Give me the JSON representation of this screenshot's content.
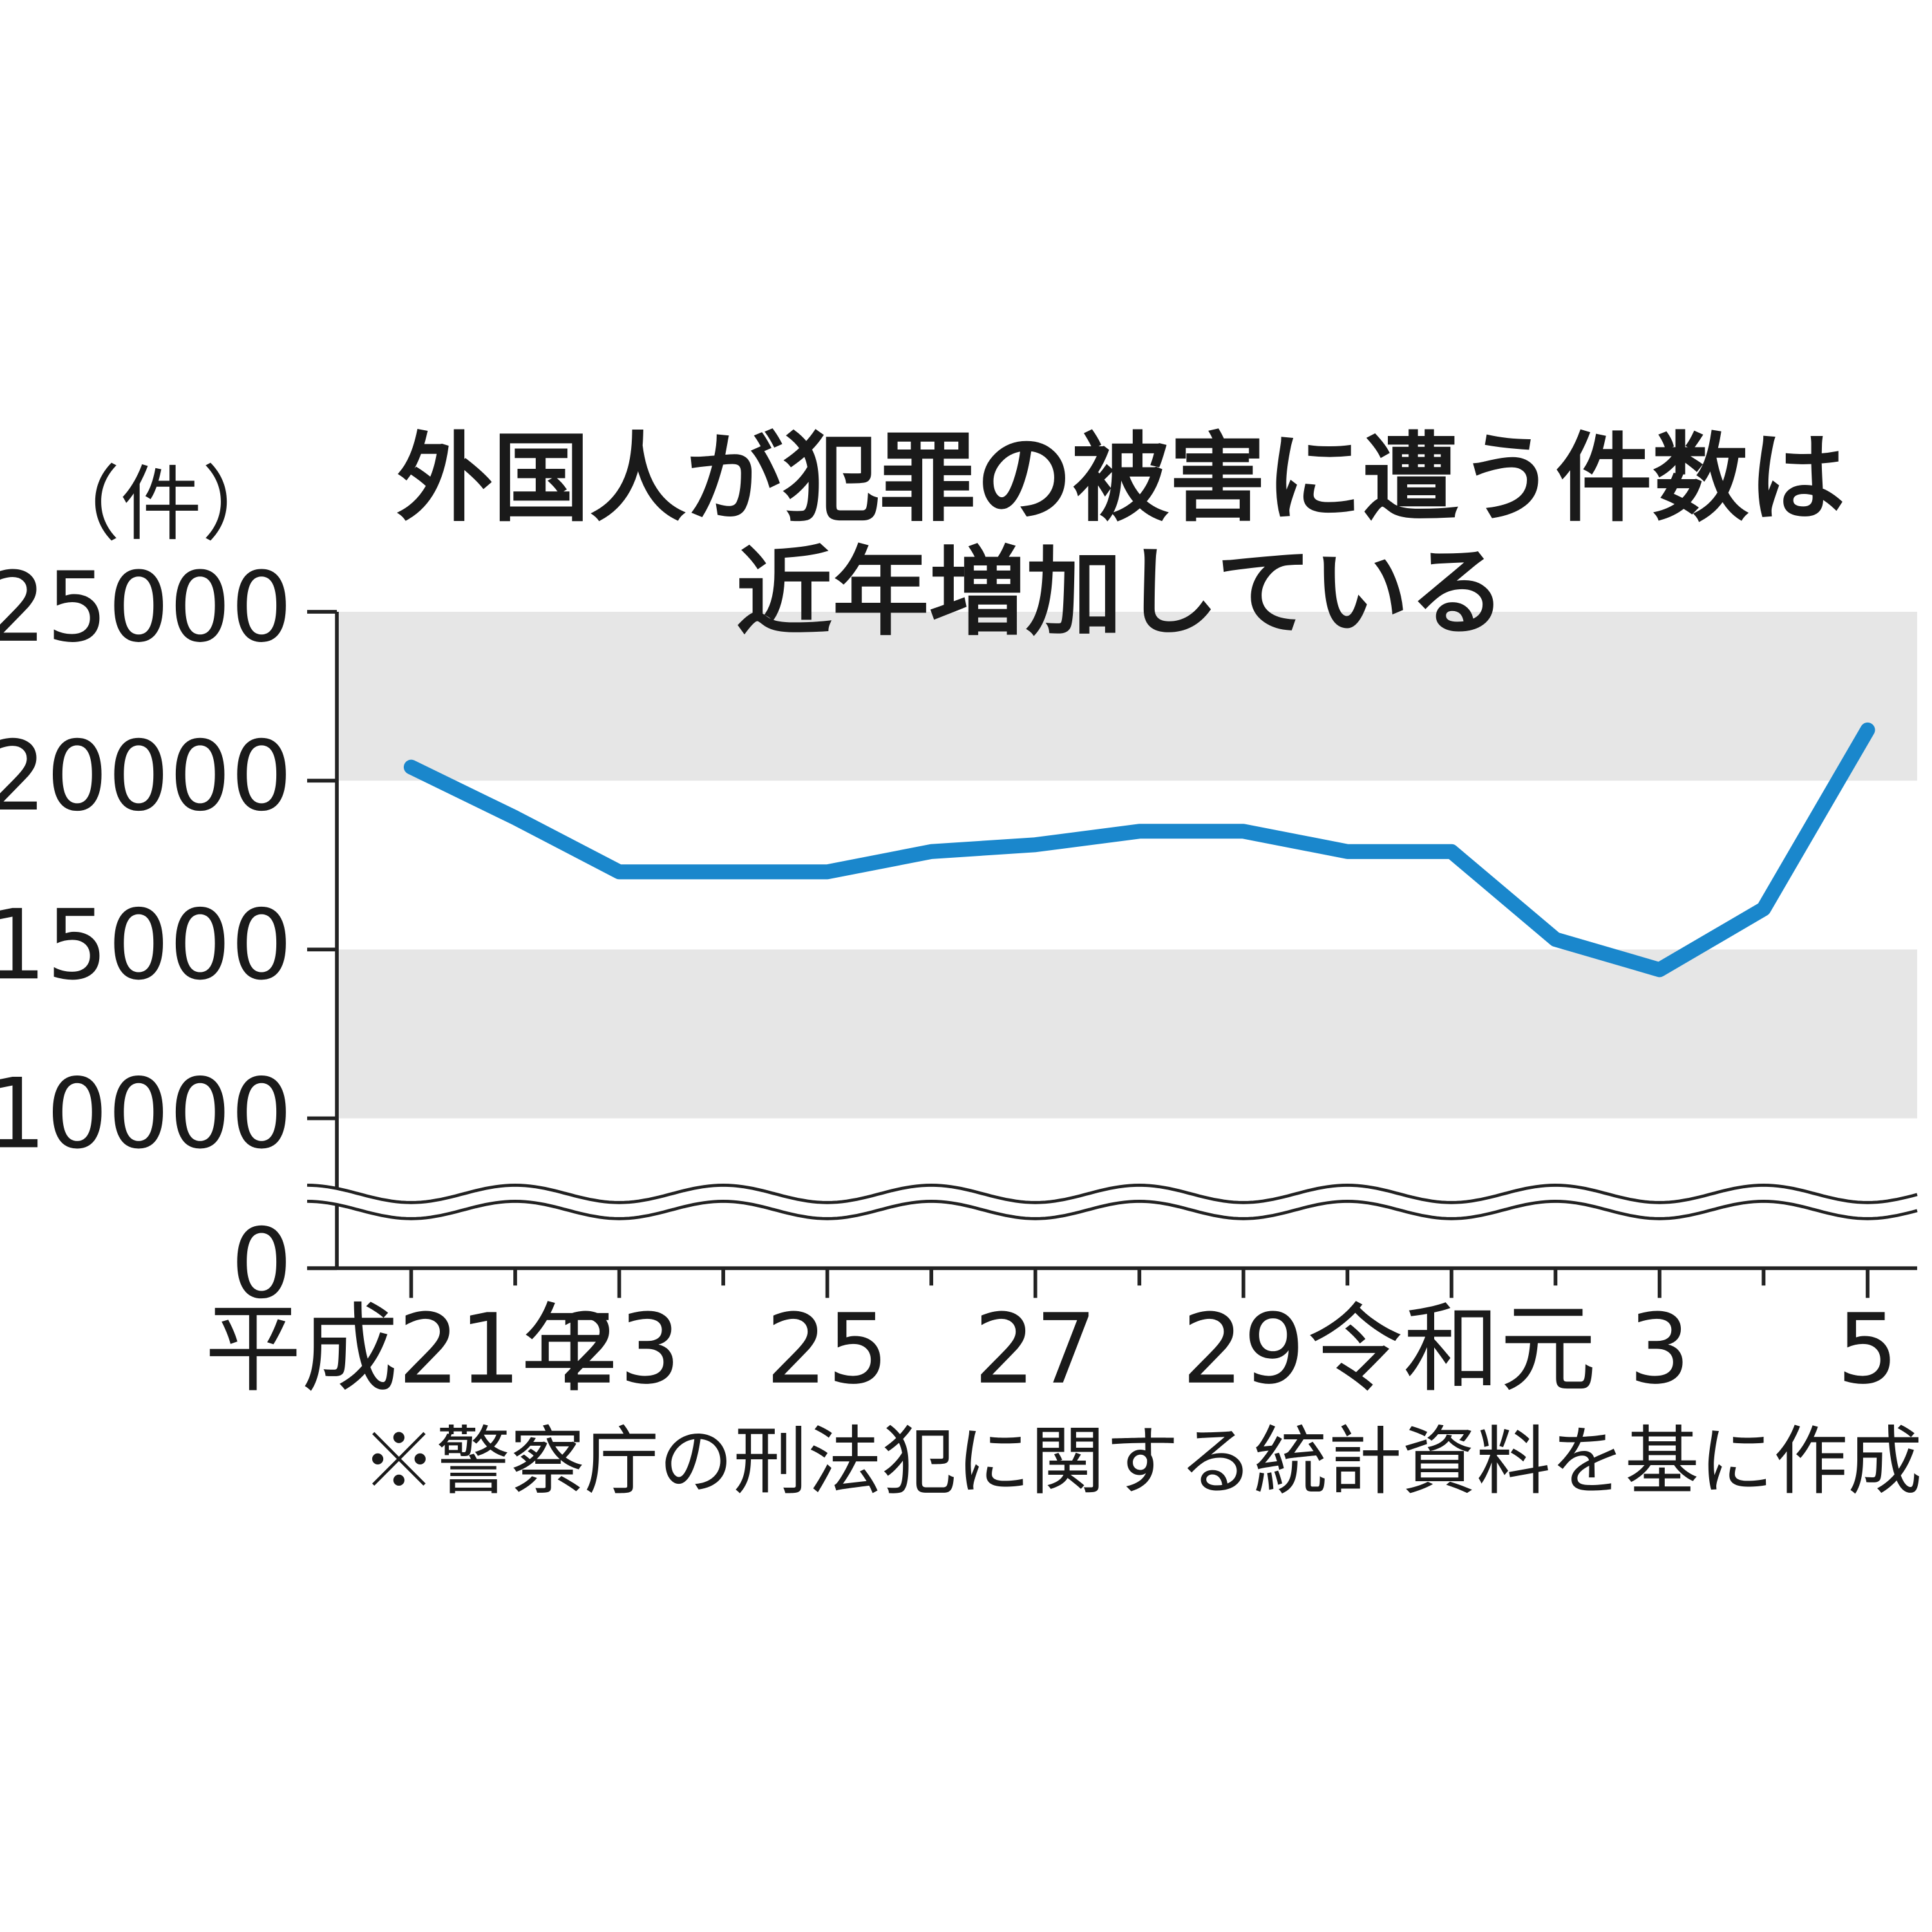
{
  "chart_data": {
    "type": "line",
    "title": [
      "外国人が犯罪の被害に遭う件数は",
      "近年増加している"
    ],
    "y_label": "（件）",
    "note": "※警察庁の刑法犯に関する統計資料を基に作成",
    "categories": [
      "平成21年",
      null,
      "23",
      null,
      "25",
      null,
      "27",
      null,
      "29",
      null,
      "令和元",
      null,
      "3",
      null,
      "5"
    ],
    "series": [
      {
        "color": "#1a87cc",
        "values": [
          20400,
          18900,
          17300,
          17300,
          17300,
          17900,
          18100,
          18500,
          18500,
          17900,
          17900,
          15300,
          14400,
          16200,
          21500
        ]
      }
    ],
    "ylim": [
      0,
      25000
    ],
    "yticks": [
      0,
      10000,
      15000,
      20000,
      25000
    ],
    "y_break": true,
    "bands": true
  }
}
